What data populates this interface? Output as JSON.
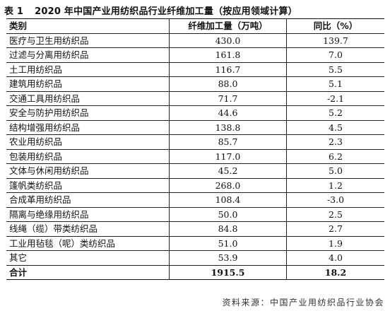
{
  "caption": {
    "label": "表 1",
    "title": "2020 年中国产业用纺织品行业纤维加工量（按应用领域计算）"
  },
  "table": {
    "headers": [
      "类别",
      "纤维加工量（万吨）",
      "同比（%）"
    ],
    "rows": [
      [
        "医疗与卫生用纺织品",
        "430.0",
        "139.7"
      ],
      [
        "过滤与分离用纺织品",
        "161.8",
        "7.0"
      ],
      [
        "土工用纺织品",
        "116.7",
        "5.5"
      ],
      [
        "建筑用纺织品",
        "88.0",
        "5.1"
      ],
      [
        "交通工具用纺织品",
        "71.7",
        "-2.1"
      ],
      [
        "安全与防护用纺织品",
        "44.6",
        "5.2"
      ],
      [
        "结构增强用纺织品",
        "138.8",
        "4.5"
      ],
      [
        "农业用纺织品",
        "85.7",
        "2.3"
      ],
      [
        "包装用纺织品",
        "117.0",
        "6.2"
      ],
      [
        "文体与休闲用纺织品",
        "45.2",
        "5.0"
      ],
      [
        "篷帆类纺织品",
        "268.0",
        "1.2"
      ],
      [
        "合成革用纺织品",
        "108.4",
        "-3.0"
      ],
      [
        "隔离与绝缘用纺织品",
        "50.0",
        "2.5"
      ],
      [
        "线绳（缆）带类纺织品",
        "84.8",
        "2.7"
      ],
      [
        "工业用毡毯（呢）类纺织品",
        "51.0",
        "1.9"
      ],
      [
        "其它",
        "53.9",
        "4.0"
      ]
    ],
    "total": [
      "合计",
      "1915.5",
      "18.2"
    ]
  },
  "source": "资料来源：中国产业用纺织品行业协会"
}
